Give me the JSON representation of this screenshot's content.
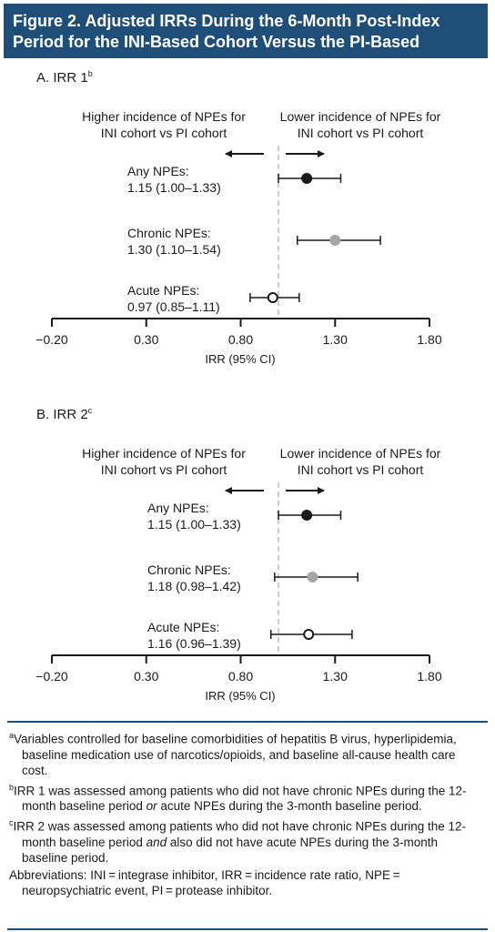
{
  "title": {
    "line1": "Figure 2. Adjusted IRRs During the 6-Month Post-Index",
    "line2": "Period for the INI-Based Cohort Versus the PI-Based Cohort",
    "sup": "a"
  },
  "direction_labels": {
    "left_line1": "Higher incidence of NPEs for",
    "left_line2": "INI cohort vs PI cohort",
    "right_line1": "Lower incidence of NPEs for",
    "right_line2": "INI cohort vs PI cohort"
  },
  "colors": {
    "title_bg": "#1f4e79",
    "any": "#1a1a1a",
    "chronic": "#a6a6a6",
    "acute": "#ffffff",
    "reference_line": "#bbbbbb"
  },
  "chart_data": [
    {
      "type": "forest",
      "panel_label": "A. IRR 1",
      "panel_sup": "b",
      "xlabel": "IRR (95% CI)",
      "xlim": [
        -0.2,
        1.8
      ],
      "xticks": [
        "−0.20",
        "0.30",
        "0.80",
        "1.30",
        "1.80"
      ],
      "reference": 1.0,
      "rows": [
        {
          "name": "Any NPEs:",
          "value_text": "1.15 (1.00–1.33)",
          "est": 1.15,
          "lo": 1.0,
          "hi": 1.33,
          "marker": "filled-black"
        },
        {
          "name": "Chronic NPEs:",
          "value_text": "1.30 (1.10–1.54)",
          "est": 1.3,
          "lo": 1.1,
          "hi": 1.54,
          "marker": "filled-gray"
        },
        {
          "name": "Acute NPEs:",
          "value_text": "0.97 (0.85–1.11)",
          "est": 0.97,
          "lo": 0.85,
          "hi": 1.11,
          "marker": "open"
        }
      ]
    },
    {
      "type": "forest",
      "panel_label": "B. IRR 2",
      "panel_sup": "c",
      "xlabel": "IRR (95% CI)",
      "xlim": [
        -0.2,
        1.8
      ],
      "xticks": [
        "−0.20",
        "0.30",
        "0.80",
        "1.30",
        "1.80"
      ],
      "reference": 1.0,
      "rows": [
        {
          "name": "Any NPEs:",
          "value_text": "1.15 (1.00–1.33)",
          "est": 1.15,
          "lo": 1.0,
          "hi": 1.33,
          "marker": "filled-black"
        },
        {
          "name": "Chronic NPEs:",
          "value_text": "1.18 (0.98–1.42)",
          "est": 1.18,
          "lo": 0.98,
          "hi": 1.42,
          "marker": "filled-gray"
        },
        {
          "name": "Acute NPEs:",
          "value_text": "1.16 (0.96–1.39)",
          "est": 1.16,
          "lo": 0.96,
          "hi": 1.39,
          "marker": "open"
        }
      ]
    }
  ],
  "footnotes": {
    "a": {
      "sup": "a",
      "text": "Variables controlled for baseline comorbidities of hepatitis B virus, hyperlipidemia, baseline medication use of narcotics/opioids, and baseline all-cause health care cost."
    },
    "b": {
      "sup": "b",
      "pre": "IRR 1 was assessed among patients who did not have chronic NPEs during the 12-month baseline period ",
      "em": "or",
      "post": " acute NPEs during the 3-month baseline period."
    },
    "c": {
      "sup": "c",
      "pre": "IRR 2 was assessed among patients who did not have chronic NPEs during the 12-month baseline period ",
      "em": "and",
      "post": " also did not have acute NPEs during the 3-month baseline period."
    },
    "abbr": "Abbreviations: INI = integrase inhibitor, IRR = incidence rate ratio, NPE = neuropsychiatric event, PI = protease inhibitor."
  }
}
